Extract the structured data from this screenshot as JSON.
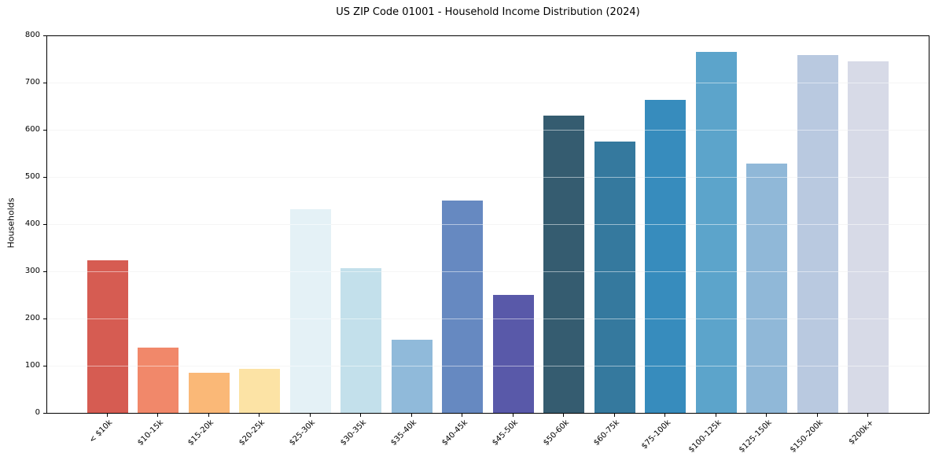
{
  "chart_data": {
    "type": "bar",
    "title": "US ZIP Code 01001 - Household Income Distribution (2024)",
    "xlabel": "",
    "ylabel": "Households",
    "ylim": [
      0,
      800
    ],
    "yticks": [
      0,
      100,
      200,
      300,
      400,
      500,
      600,
      700,
      800
    ],
    "grid": true,
    "legend": "none",
    "categories": [
      "< $10k",
      "$10-15k",
      "$15-20k",
      "$20-25k",
      "$25-30k",
      "$30-35k",
      "$35-40k",
      "$40-45k",
      "$45-50k",
      "$50-60k",
      "$60-75k",
      "$75-100k",
      "$100-125k",
      "$125-150k",
      "$150-200k",
      "$200k+"
    ],
    "values": [
      323,
      138,
      85,
      93,
      432,
      306,
      155,
      450,
      250,
      630,
      575,
      663,
      765,
      528,
      759,
      745
    ],
    "bar_colors": [
      "#d65c52",
      "#f1886a",
      "#fab877",
      "#fce3a5",
      "#e4f1f6",
      "#c3e0eb",
      "#90bada",
      "#6689c1",
      "#5959a9",
      "#355c70",
      "#35799e",
      "#378cbd",
      "#5ca4cb",
      "#90b8d8",
      "#b9c9e0",
      "#d7dae7"
    ],
    "colors": {
      "background": "#ffffff",
      "grid": "#ebebeb",
      "spine": "#000000",
      "text": "#000000"
    }
  }
}
